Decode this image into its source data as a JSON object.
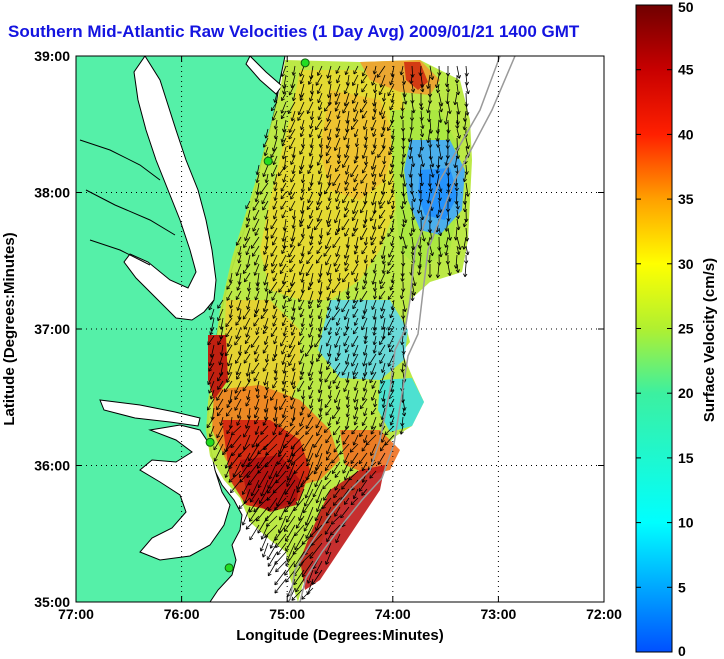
{
  "title": "Southern Mid-Atlantic Raw Velocities (1 Day Avg) 2009/01/21 1400 GMT",
  "map": {
    "xlabel": "Longitude (Degrees:Minutes)",
    "ylabel": "Latitude (Degrees:Minutes)",
    "xlim": [
      -77,
      -72
    ],
    "ylim": [
      35,
      39
    ],
    "x_ticks": [
      {
        "value": -77,
        "label": "77:00"
      },
      {
        "value": -76,
        "label": "76:00"
      },
      {
        "value": -75,
        "label": "75:00"
      },
      {
        "value": -74,
        "label": "74:00"
      },
      {
        "value": -73,
        "label": "73:00"
      },
      {
        "value": -72,
        "label": "72:00"
      }
    ],
    "y_ticks": [
      {
        "value": 35,
        "label": "35:00"
      },
      {
        "value": 36,
        "label": "36:00"
      },
      {
        "value": 37,
        "label": "37:00"
      },
      {
        "value": 38,
        "label": "38:00"
      },
      {
        "value": 39,
        "label": "39:00"
      }
    ],
    "grid": "dotted",
    "land_color": "#55f0a8",
    "coast_color": "#000000"
  },
  "colorbar": {
    "label": "Surface Velocity (cm/s)",
    "range": [
      0,
      50
    ],
    "ticks": [
      {
        "value": 0,
        "label": "0"
      },
      {
        "value": 5,
        "label": "5"
      },
      {
        "value": 10,
        "label": "10"
      },
      {
        "value": 15,
        "label": "15"
      },
      {
        "value": 20,
        "label": "20"
      },
      {
        "value": 25,
        "label": "25"
      },
      {
        "value": 30,
        "label": "30"
      },
      {
        "value": 35,
        "label": "35"
      },
      {
        "value": 40,
        "label": "40"
      },
      {
        "value": 45,
        "label": "45"
      },
      {
        "value": 50,
        "label": "50"
      }
    ]
  },
  "stations": [
    {
      "lon": -74.83,
      "lat": 38.95
    },
    {
      "lon": -75.18,
      "lat": 38.23
    },
    {
      "lon": -75.73,
      "lat": 36.17
    },
    {
      "lon": -75.55,
      "lat": 35.25
    }
  ]
}
